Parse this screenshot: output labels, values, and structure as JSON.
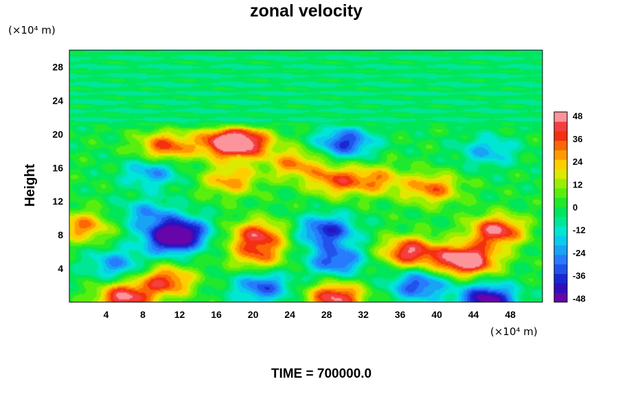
{
  "chart_data": {
    "type": "heatmap",
    "title": "zonal velocity",
    "ylabel": "Height",
    "xunit": "(×10⁴ m)",
    "yunit": "(×10⁴ m)",
    "footer": "TIME = 700000.0",
    "xlim": [
      0,
      51.5
    ],
    "ylim": [
      0,
      30
    ],
    "xticks": [
      4,
      8,
      12,
      16,
      20,
      24,
      28,
      32,
      36,
      40,
      44,
      48
    ],
    "yticks": [
      4,
      8,
      12,
      16,
      20,
      24,
      28
    ],
    "colorbar": {
      "range": [
        -50,
        50
      ],
      "ticks": [
        48,
        36,
        24,
        12,
        0,
        -12,
        -24,
        -36,
        -48
      ],
      "levels": 20
    },
    "field": {
      "description_units": "zonal velocity",
      "upper_layer_value": -4,
      "features": [
        {
          "x": 17,
          "y": 19.0,
          "value": 45
        },
        {
          "x": 10.5,
          "y": 18.5,
          "value": 36
        },
        {
          "x": 19.5,
          "y": 19.0,
          "value": 32
        },
        {
          "x": 24.5,
          "y": 16.5,
          "value": 28
        },
        {
          "x": 29,
          "y": 14.5,
          "value": 32
        },
        {
          "x": 33.5,
          "y": 14.5,
          "value": 26
        },
        {
          "x": 39.5,
          "y": 13.5,
          "value": 32
        },
        {
          "x": 17.5,
          "y": 14.5,
          "value": 28
        },
        {
          "x": 30,
          "y": 19.0,
          "value": -36
        },
        {
          "x": 45.5,
          "y": 18.0,
          "value": -20
        },
        {
          "x": 9,
          "y": 15.5,
          "value": -24
        },
        {
          "x": 1.5,
          "y": 9.0,
          "value": 30
        },
        {
          "x": 11,
          "y": 7.5,
          "value": -42
        },
        {
          "x": 12.5,
          "y": 8.5,
          "value": -30
        },
        {
          "x": 8.5,
          "y": 10.5,
          "value": -22
        },
        {
          "x": 20.5,
          "y": 8.0,
          "value": 38
        },
        {
          "x": 20.5,
          "y": 5.5,
          "value": 28
        },
        {
          "x": 28,
          "y": 8.5,
          "value": -38
        },
        {
          "x": 29,
          "y": 5.0,
          "value": -34
        },
        {
          "x": 37,
          "y": 6.0,
          "value": 44
        },
        {
          "x": 42,
          "y": 5.0,
          "value": 30
        },
        {
          "x": 46.5,
          "y": 8.5,
          "value": 46
        },
        {
          "x": 44,
          "y": 5.0,
          "value": 36
        },
        {
          "x": 10.5,
          "y": 2.5,
          "value": 38
        },
        {
          "x": 6,
          "y": 0.5,
          "value": 46
        },
        {
          "x": 29,
          "y": 0.5,
          "value": 46
        },
        {
          "x": 45.5,
          "y": 0.3,
          "value": -50
        },
        {
          "x": 38,
          "y": 2.0,
          "value": -34
        },
        {
          "x": 21,
          "y": 1.8,
          "value": -32
        },
        {
          "x": 5,
          "y": 4.5,
          "value": -24
        }
      ]
    }
  }
}
